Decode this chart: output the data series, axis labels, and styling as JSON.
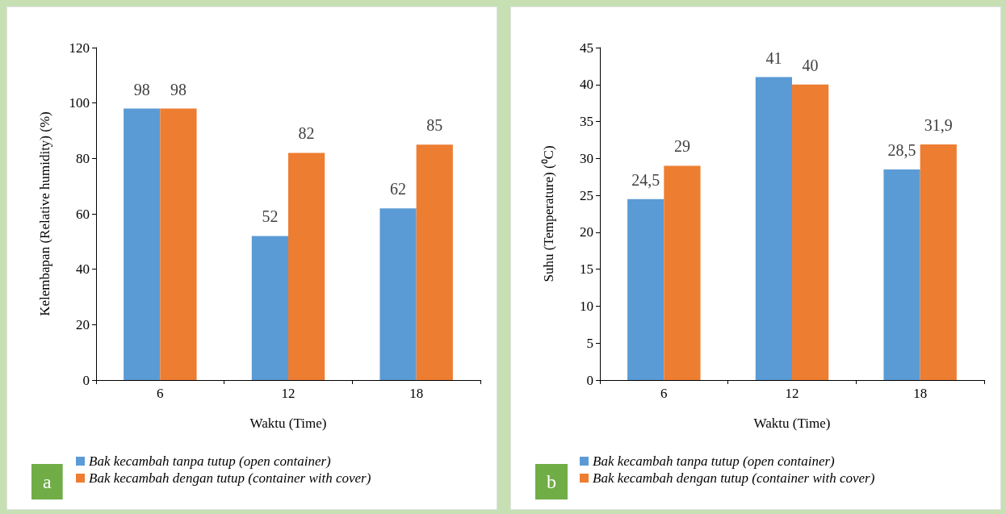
{
  "chart_data": [
    {
      "type": "bar",
      "xlabel": "Waktu (Time)",
      "ylabel": "Kelembapan (Relative humidity) (%)",
      "categories": [
        "6",
        "12",
        "18"
      ],
      "series": [
        {
          "name": "Bak kecambah tanpa tutup (open container)",
          "color": "#5b9bd5",
          "values": [
            98,
            52,
            62
          ],
          "value_labels": [
            "98",
            "52",
            "62"
          ]
        },
        {
          "name": "Bak kecambah dengan tutup (container with cover)",
          "color": "#ed7d31",
          "values": [
            98,
            82,
            85
          ],
          "value_labels": [
            "98",
            "82",
            "85"
          ]
        }
      ],
      "ylim": [
        0,
        120
      ],
      "yticks": [
        0,
        20,
        40,
        60,
        80,
        100,
        120
      ],
      "grid": false,
      "legend": "bottom",
      "annotations": [
        "a"
      ]
    },
    {
      "type": "bar",
      "xlabel": "Waktu (Time)",
      "ylabel": "Suhu (Temperature) (⁰C)",
      "categories": [
        "6",
        "12",
        "18"
      ],
      "series": [
        {
          "name": "Bak kecambah tanpa tutup (open container)",
          "color": "#5b9bd5",
          "values": [
            24.5,
            41,
            28.5
          ],
          "value_labels": [
            "24,5",
            "41",
            "28,5"
          ]
        },
        {
          "name": "Bak kecambah dengan tutup (container with cover)",
          "color": "#ed7d31",
          "values": [
            29,
            40,
            31.9
          ],
          "value_labels": [
            "29",
            "40",
            "31,9"
          ]
        }
      ],
      "ylim": [
        0,
        45
      ],
      "yticks": [
        0,
        5,
        10,
        15,
        20,
        25,
        30,
        35,
        40,
        45
      ],
      "grid": false,
      "legend": "bottom",
      "annotations": [
        "b"
      ]
    }
  ]
}
